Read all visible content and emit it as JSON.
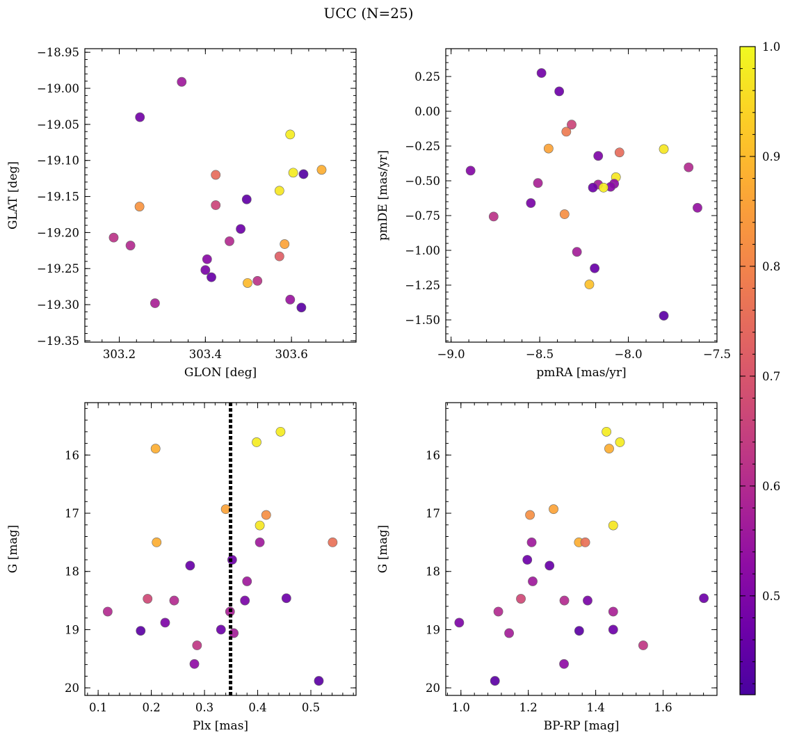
{
  "figure": {
    "title": "UCC (N=25)"
  },
  "colorbar": {
    "min": 0.41,
    "max": 1.0,
    "ticks": [
      0.5,
      0.6,
      0.7,
      0.8,
      0.9,
      1.0
    ],
    "tick_labels": [
      "0.5",
      "0.6",
      "0.7",
      "0.8",
      "0.9",
      "1.0"
    ],
    "colormap": "plasma"
  },
  "chart_data": [
    {
      "type": "scatter",
      "id": "glon-glat",
      "xlabel": "GLON [deg]",
      "ylabel": "GLAT [deg]",
      "xlim": [
        303.12,
        303.75
      ],
      "ylim": [
        -19.352,
        -18.945
      ],
      "xticks": [
        303.2,
        303.4,
        303.6
      ],
      "xtick_labels": [
        "303.2",
        "303.4",
        "303.6"
      ],
      "yticks": [
        -18.95,
        -19.0,
        -19.05,
        -19.1,
        -19.15,
        -19.2,
        -19.25,
        -19.3,
        -19.35
      ],
      "ytick_labels": [
        "−18.95",
        "−19.00",
        "−19.05",
        "−19.10",
        "−19.15",
        "−19.20",
        "−19.25",
        "−19.30",
        "−19.35"
      ],
      "points": [
        {
          "x": 303.345,
          "y": -18.991,
          "c": 0.56
        },
        {
          "x": 303.248,
          "y": -19.04,
          "c": 0.48
        },
        {
          "x": 303.597,
          "y": -19.064,
          "c": 0.98
        },
        {
          "x": 303.604,
          "y": -19.117,
          "c": 0.98
        },
        {
          "x": 303.67,
          "y": -19.113,
          "c": 0.88
        },
        {
          "x": 303.628,
          "y": -19.119,
          "c": 0.43
        },
        {
          "x": 303.424,
          "y": -19.12,
          "c": 0.75
        },
        {
          "x": 303.572,
          "y": -19.142,
          "c": 0.97
        },
        {
          "x": 303.496,
          "y": -19.154,
          "c": 0.45
        },
        {
          "x": 303.247,
          "y": -19.164,
          "c": 0.83
        },
        {
          "x": 303.424,
          "y": -19.162,
          "c": 0.66
        },
        {
          "x": 303.482,
          "y": -19.195,
          "c": 0.47
        },
        {
          "x": 303.187,
          "y": -19.207,
          "c": 0.62
        },
        {
          "x": 303.226,
          "y": -19.218,
          "c": 0.6
        },
        {
          "x": 303.456,
          "y": -19.212,
          "c": 0.6
        },
        {
          "x": 303.584,
          "y": -19.216,
          "c": 0.86
        },
        {
          "x": 303.572,
          "y": -19.233,
          "c": 0.72
        },
        {
          "x": 303.404,
          "y": -19.237,
          "c": 0.52
        },
        {
          "x": 303.4,
          "y": -19.252,
          "c": 0.49
        },
        {
          "x": 303.414,
          "y": -19.262,
          "c": 0.46
        },
        {
          "x": 303.498,
          "y": -19.27,
          "c": 0.9
        },
        {
          "x": 303.521,
          "y": -19.267,
          "c": 0.62
        },
        {
          "x": 303.283,
          "y": -19.298,
          "c": 0.58
        },
        {
          "x": 303.597,
          "y": -19.293,
          "c": 0.55
        },
        {
          "x": 303.623,
          "y": -19.304,
          "c": 0.44
        }
      ]
    },
    {
      "type": "scatter",
      "id": "pmra-pmde",
      "xlabel": "pmRA [mas/yr]",
      "ylabel": "pmDE [mas/yr]",
      "xlim": [
        -9.03,
        -7.5
      ],
      "ylim": [
        -1.66,
        0.45
      ],
      "xticks": [
        -9.0,
        -8.5,
        -8.0,
        -7.5
      ],
      "xtick_labels": [
        "−9.0",
        "−8.5",
        "−8.0",
        "−7.5"
      ],
      "yticks": [
        0.25,
        0.0,
        -0.25,
        -0.5,
        -0.75,
        -1.0,
        -1.25,
        -1.5
      ],
      "ytick_labels": [
        "0.25",
        "0.00",
        "−0.25",
        "−0.50",
        "−0.75",
        "−1.00",
        "−1.25",
        "−1.50"
      ],
      "points": [
        {
          "x": -8.49,
          "y": 0.275,
          "c": 0.48
        },
        {
          "x": -8.39,
          "y": 0.143,
          "c": 0.47
        },
        {
          "x": -8.32,
          "y": -0.096,
          "c": 0.66
        },
        {
          "x": -8.35,
          "y": -0.147,
          "c": 0.78
        },
        {
          "x": -8.45,
          "y": -0.268,
          "c": 0.86
        },
        {
          "x": -8.05,
          "y": -0.296,
          "c": 0.75
        },
        {
          "x": -7.8,
          "y": -0.272,
          "c": 0.97
        },
        {
          "x": -8.17,
          "y": -0.321,
          "c": 0.5
        },
        {
          "x": -8.89,
          "y": -0.427,
          "c": 0.51
        },
        {
          "x": -7.66,
          "y": -0.403,
          "c": 0.6
        },
        {
          "x": -8.07,
          "y": -0.474,
          "c": 0.97
        },
        {
          "x": -8.51,
          "y": -0.516,
          "c": 0.58
        },
        {
          "x": -8.17,
          "y": -0.527,
          "c": 0.57
        },
        {
          "x": -8.08,
          "y": -0.521,
          "c": 0.53
        },
        {
          "x": -8.1,
          "y": -0.543,
          "c": 0.52
        },
        {
          "x": -8.2,
          "y": -0.549,
          "c": 0.47
        },
        {
          "x": -8.14,
          "y": -0.549,
          "c": 0.98
        },
        {
          "x": -8.55,
          "y": -0.66,
          "c": 0.49
        },
        {
          "x": -7.61,
          "y": -0.694,
          "c": 0.54
        },
        {
          "x": -8.76,
          "y": -0.757,
          "c": 0.62
        },
        {
          "x": -8.36,
          "y": -0.74,
          "c": 0.82
        },
        {
          "x": -8.29,
          "y": -1.011,
          "c": 0.57
        },
        {
          "x": -8.19,
          "y": -1.129,
          "c": 0.46
        },
        {
          "x": -8.22,
          "y": -1.245,
          "c": 0.91
        },
        {
          "x": -7.8,
          "y": -1.47,
          "c": 0.44
        }
      ]
    },
    {
      "type": "scatter",
      "id": "plx-g",
      "xlabel": "Plx [mas]",
      "ylabel": "G [mag]",
      "xlim": [
        0.075,
        0.585
      ],
      "ylim": [
        20.13,
        15.1
      ],
      "y_inverted": true,
      "xticks": [
        0.1,
        0.2,
        0.3,
        0.4,
        0.5
      ],
      "xtick_labels": [
        "0.1",
        "0.2",
        "0.3",
        "0.4",
        "0.5"
      ],
      "yticks": [
        16,
        17,
        18,
        19,
        20
      ],
      "ytick_labels": [
        "16",
        "17",
        "18",
        "19",
        "20"
      ],
      "vline": {
        "x": 0.349,
        "style": "dotted",
        "color": "#000000"
      },
      "points": [
        {
          "x": 0.443,
          "y": 15.6,
          "c": 0.98
        },
        {
          "x": 0.398,
          "y": 15.78,
          "c": 0.98
        },
        {
          "x": 0.208,
          "y": 15.89,
          "c": 0.88
        },
        {
          "x": 0.34,
          "y": 16.93,
          "c": 0.86
        },
        {
          "x": 0.416,
          "y": 17.03,
          "c": 0.82
        },
        {
          "x": 0.404,
          "y": 17.21,
          "c": 0.97
        },
        {
          "x": 0.21,
          "y": 17.5,
          "c": 0.88
        },
        {
          "x": 0.404,
          "y": 17.5,
          "c": 0.56
        },
        {
          "x": 0.541,
          "y": 17.5,
          "c": 0.76
        },
        {
          "x": 0.352,
          "y": 17.8,
          "c": 0.47
        },
        {
          "x": 0.273,
          "y": 17.9,
          "c": 0.46
        },
        {
          "x": 0.38,
          "y": 18.17,
          "c": 0.56
        },
        {
          "x": 0.193,
          "y": 18.47,
          "c": 0.67
        },
        {
          "x": 0.243,
          "y": 18.5,
          "c": 0.6
        },
        {
          "x": 0.376,
          "y": 18.5,
          "c": 0.49
        },
        {
          "x": 0.454,
          "y": 18.46,
          "c": 0.47
        },
        {
          "x": 0.118,
          "y": 18.69,
          "c": 0.6
        },
        {
          "x": 0.348,
          "y": 18.69,
          "c": 0.58
        },
        {
          "x": 0.226,
          "y": 18.88,
          "c": 0.5
        },
        {
          "x": 0.18,
          "y": 19.02,
          "c": 0.44
        },
        {
          "x": 0.331,
          "y": 19.0,
          "c": 0.47
        },
        {
          "x": 0.355,
          "y": 19.06,
          "c": 0.57
        },
        {
          "x": 0.286,
          "y": 19.27,
          "c": 0.63
        },
        {
          "x": 0.281,
          "y": 19.59,
          "c": 0.53
        },
        {
          "x": 0.515,
          "y": 19.88,
          "c": 0.44
        }
      ]
    },
    {
      "type": "scatter",
      "id": "bprp-g",
      "xlabel": "BP-RP [mag]",
      "ylabel": "G [mag]",
      "xlim": [
        0.955,
        1.76
      ],
      "ylim": [
        20.13,
        15.1
      ],
      "y_inverted": true,
      "xticks": [
        1.0,
        1.2,
        1.4,
        1.6
      ],
      "xtick_labels": [
        "1.0",
        "1.2",
        "1.4",
        "1.6"
      ],
      "yticks": [
        16,
        17,
        18,
        19,
        20
      ],
      "ytick_labels": [
        "16",
        "17",
        "18",
        "19",
        "20"
      ],
      "points": [
        {
          "x": 1.432,
          "y": 15.6,
          "c": 0.98
        },
        {
          "x": 1.472,
          "y": 15.78,
          "c": 0.98
        },
        {
          "x": 1.44,
          "y": 15.89,
          "c": 0.88
        },
        {
          "x": 1.275,
          "y": 16.93,
          "c": 0.86
        },
        {
          "x": 1.205,
          "y": 17.03,
          "c": 0.82
        },
        {
          "x": 1.452,
          "y": 17.21,
          "c": 0.97
        },
        {
          "x": 1.35,
          "y": 17.5,
          "c": 0.88
        },
        {
          "x": 1.369,
          "y": 17.5,
          "c": 0.76
        },
        {
          "x": 1.21,
          "y": 17.5,
          "c": 0.56
        },
        {
          "x": 1.197,
          "y": 17.8,
          "c": 0.47
        },
        {
          "x": 1.263,
          "y": 17.9,
          "c": 0.46
        },
        {
          "x": 1.213,
          "y": 18.17,
          "c": 0.56
        },
        {
          "x": 1.178,
          "y": 18.47,
          "c": 0.67
        },
        {
          "x": 1.307,
          "y": 18.5,
          "c": 0.6
        },
        {
          "x": 1.376,
          "y": 18.5,
          "c": 0.49
        },
        {
          "x": 1.721,
          "y": 18.46,
          "c": 0.47
        },
        {
          "x": 1.111,
          "y": 18.69,
          "c": 0.6
        },
        {
          "x": 1.452,
          "y": 18.69,
          "c": 0.58
        },
        {
          "x": 0.995,
          "y": 18.88,
          "c": 0.5
        },
        {
          "x": 1.351,
          "y": 19.02,
          "c": 0.44
        },
        {
          "x": 1.452,
          "y": 19.0,
          "c": 0.47
        },
        {
          "x": 1.143,
          "y": 19.06,
          "c": 0.57
        },
        {
          "x": 1.541,
          "y": 19.27,
          "c": 0.63
        },
        {
          "x": 1.306,
          "y": 19.59,
          "c": 0.53
        },
        {
          "x": 1.101,
          "y": 19.88,
          "c": 0.44
        }
      ]
    }
  ]
}
